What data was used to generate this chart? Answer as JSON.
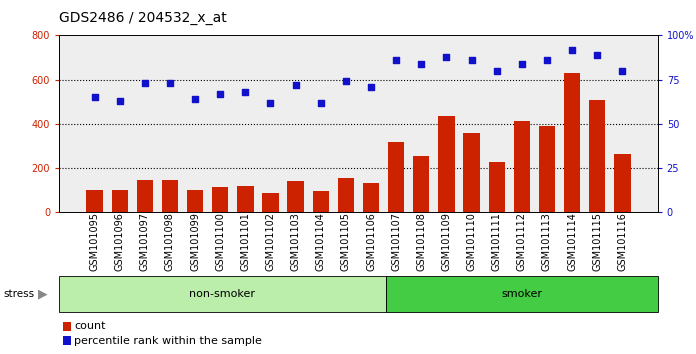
{
  "title": "GDS2486 / 204532_x_at",
  "samples": [
    "GSM101095",
    "GSM101096",
    "GSM101097",
    "GSM101098",
    "GSM101099",
    "GSM101100",
    "GSM101101",
    "GSM101102",
    "GSM101103",
    "GSM101104",
    "GSM101105",
    "GSM101106",
    "GSM101107",
    "GSM101108",
    "GSM101109",
    "GSM101110",
    "GSM101111",
    "GSM101112",
    "GSM101113",
    "GSM101114",
    "GSM101115",
    "GSM101116"
  ],
  "counts": [
    100,
    100,
    145,
    148,
    100,
    115,
    120,
    88,
    140,
    95,
    155,
    135,
    320,
    253,
    435,
    358,
    230,
    415,
    390,
    628,
    510,
    263
  ],
  "percentiles": [
    65,
    63,
    73,
    73,
    64,
    67,
    68,
    62,
    72,
    62,
    74,
    71,
    86,
    84,
    88,
    86,
    80,
    84,
    86,
    92,
    89,
    80
  ],
  "nonsmoker_count": 12,
  "smoker_count": 10,
  "bar_color": "#cc2200",
  "dot_color": "#1111cc",
  "nonsmoker_color": "#bbeeaa",
  "smoker_color": "#44cc44",
  "left_ylim": [
    0,
    800
  ],
  "right_ylim": [
    0,
    100
  ],
  "left_yticks": [
    0,
    200,
    400,
    600,
    800
  ],
  "right_yticks": [
    0,
    25,
    50,
    75,
    100
  ],
  "right_yticklabels": [
    "0",
    "25",
    "50",
    "75",
    "100%"
  ],
  "grid_values": [
    200,
    400,
    600
  ],
  "plot_bg": "#eeeeee",
  "title_fontsize": 10,
  "tick_fontsize": 7,
  "label_fontsize": 8,
  "band_fontsize": 8
}
